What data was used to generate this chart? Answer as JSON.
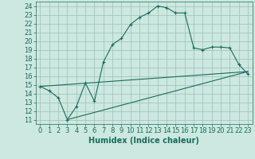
{
  "xlabel": "Humidex (Indice chaleur)",
  "xlim": [
    -0.5,
    23.5
  ],
  "ylim": [
    10.5,
    24.5
  ],
  "xticks": [
    0,
    1,
    2,
    3,
    4,
    5,
    6,
    7,
    8,
    9,
    10,
    11,
    12,
    13,
    14,
    15,
    16,
    17,
    18,
    19,
    20,
    21,
    22,
    23
  ],
  "yticks": [
    11,
    12,
    13,
    14,
    15,
    16,
    17,
    18,
    19,
    20,
    21,
    22,
    23,
    24
  ],
  "bg_color": "#cce8e0",
  "grid_color": "#9bbfb8",
  "line_color": "#1a6b5a",
  "curve1_x": [
    0,
    1,
    2,
    3,
    4,
    5,
    6,
    7,
    8,
    9,
    10,
    11,
    12,
    13,
    14,
    15,
    16,
    17,
    18,
    19,
    20,
    21,
    22,
    23
  ],
  "curve1_y": [
    14.8,
    14.3,
    13.5,
    11.0,
    12.5,
    15.2,
    13.1,
    17.6,
    19.6,
    20.3,
    21.9,
    22.7,
    23.2,
    24.0,
    23.8,
    23.2,
    23.2,
    19.2,
    19.0,
    19.3,
    19.3,
    19.2,
    17.3,
    16.2
  ],
  "line1_x": [
    0,
    23
  ],
  "line1_y": [
    14.8,
    16.5
  ],
  "line2_x": [
    3,
    23
  ],
  "line2_y": [
    11.0,
    16.5
  ],
  "xlabel_fontsize": 7,
  "tick_fontsize": 6
}
